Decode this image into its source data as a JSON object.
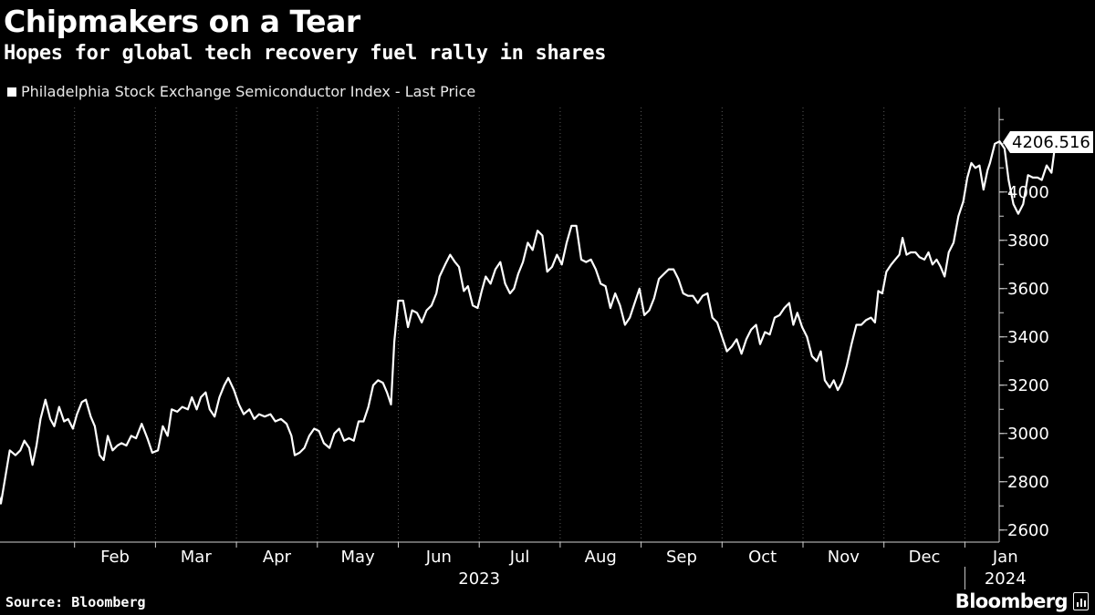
{
  "header": {
    "title": "Chipmakers on a Tear",
    "subtitle": "Hopes for global tech recovery fuel rally in shares"
  },
  "footer": {
    "source": "Source: Bloomberg",
    "brand": "Bloomberg"
  },
  "colors": {
    "background": "#000000",
    "line": "#ffffff",
    "grid": "#5a5a5a",
    "text": "#ffffff"
  },
  "chart_data": {
    "type": "line",
    "title": "Chipmakers on a Tear",
    "subtitle": "Hopes for global tech recovery fuel rally in shares",
    "legend": [
      "Philadelphia Stock Exchange Semiconductor Index - Last Price"
    ],
    "legend_position": "top-left",
    "xlabel": "",
    "ylabel": "",
    "ylim": [
      2550,
      4350
    ],
    "yticks": [
      2600,
      2800,
      3000,
      3200,
      3400,
      3600,
      3800,
      4000
    ],
    "grid": "vertical-dotted",
    "x_ticks": [
      {
        "label": "Feb",
        "month": 1
      },
      {
        "label": "Mar",
        "month": 2
      },
      {
        "label": "Apr",
        "month": 3
      },
      {
        "label": "May",
        "month": 4
      },
      {
        "label": "Jun",
        "month": 5
      },
      {
        "label": "Jul",
        "month": 6
      },
      {
        "label": "Aug",
        "month": 7
      },
      {
        "label": "Sep",
        "month": 8
      },
      {
        "label": "Oct",
        "month": 9
      },
      {
        "label": "Nov",
        "month": 10
      },
      {
        "label": "Dec",
        "month": 11
      },
      {
        "label": "Jan",
        "month": 12
      }
    ],
    "x_range_months": [
      0,
      12.35
    ],
    "year_labels": [
      {
        "label": "2023",
        "month": 6
      },
      {
        "label": "2024",
        "month": 12.5
      }
    ],
    "last_value_label": "4206.516",
    "series": [
      {
        "name": "Philadelphia Stock Exchange Semiconductor Index - Last Price",
        "points": [
          [
            0.03,
            2790
          ],
          [
            0.09,
            2710
          ],
          [
            0.15,
            2830
          ],
          [
            0.2,
            2930
          ],
          [
            0.27,
            2910
          ],
          [
            0.33,
            2930
          ],
          [
            0.38,
            2970
          ],
          [
            0.44,
            2940
          ],
          [
            0.48,
            2870
          ],
          [
            0.53,
            2950
          ],
          [
            0.58,
            3060
          ],
          [
            0.64,
            3140
          ],
          [
            0.7,
            3060
          ],
          [
            0.75,
            3030
          ],
          [
            0.81,
            3110
          ],
          [
            0.87,
            3050
          ],
          [
            0.92,
            3060
          ],
          [
            0.98,
            3020
          ],
          [
            1.03,
            3080
          ],
          [
            1.09,
            3130
          ],
          [
            1.14,
            3140
          ],
          [
            1.2,
            3070
          ],
          [
            1.25,
            3030
          ],
          [
            1.31,
            2910
          ],
          [
            1.36,
            2890
          ],
          [
            1.41,
            2990
          ],
          [
            1.47,
            2930
          ],
          [
            1.53,
            2950
          ],
          [
            1.58,
            2960
          ],
          [
            1.64,
            2950
          ],
          [
            1.7,
            2990
          ],
          [
            1.76,
            2980
          ],
          [
            1.83,
            3040
          ],
          [
            1.9,
            2980
          ],
          [
            1.96,
            2920
          ],
          [
            2.03,
            2930
          ],
          [
            2.09,
            3030
          ],
          [
            2.15,
            2990
          ],
          [
            2.2,
            3100
          ],
          [
            2.27,
            3090
          ],
          [
            2.33,
            3110
          ],
          [
            2.4,
            3100
          ],
          [
            2.45,
            3150
          ],
          [
            2.51,
            3100
          ],
          [
            2.56,
            3150
          ],
          [
            2.62,
            3170
          ],
          [
            2.67,
            3100
          ],
          [
            2.73,
            3070
          ],
          [
            2.79,
            3150
          ],
          [
            2.85,
            3200
          ],
          [
            2.9,
            3230
          ],
          [
            2.97,
            3180
          ],
          [
            3.03,
            3120
          ],
          [
            3.09,
            3080
          ],
          [
            3.16,
            3100
          ],
          [
            3.22,
            3060
          ],
          [
            3.28,
            3080
          ],
          [
            3.35,
            3070
          ],
          [
            3.42,
            3080
          ],
          [
            3.48,
            3050
          ],
          [
            3.55,
            3060
          ],
          [
            3.62,
            3040
          ],
          [
            3.68,
            2990
          ],
          [
            3.72,
            2910
          ],
          [
            3.78,
            2920
          ],
          [
            3.84,
            2940
          ],
          [
            3.9,
            2990
          ],
          [
            3.96,
            3020
          ],
          [
            4.02,
            3010
          ],
          [
            4.08,
            2960
          ],
          [
            4.15,
            2940
          ],
          [
            4.21,
            3000
          ],
          [
            4.27,
            3020
          ],
          [
            4.33,
            2970
          ],
          [
            4.39,
            2980
          ],
          [
            4.45,
            2970
          ],
          [
            4.51,
            3050
          ],
          [
            4.57,
            3050
          ],
          [
            4.63,
            3110
          ],
          [
            4.69,
            3200
          ],
          [
            4.75,
            3220
          ],
          [
            4.81,
            3210
          ],
          [
            4.86,
            3170
          ],
          [
            4.91,
            3120
          ],
          [
            4.95,
            3380
          ],
          [
            5.0,
            3550
          ],
          [
            5.06,
            3550
          ],
          [
            5.12,
            3440
          ],
          [
            5.17,
            3510
          ],
          [
            5.23,
            3500
          ],
          [
            5.29,
            3460
          ],
          [
            5.35,
            3510
          ],
          [
            5.41,
            3530
          ],
          [
            5.47,
            3580
          ],
          [
            5.51,
            3650
          ],
          [
            5.58,
            3700
          ],
          [
            5.64,
            3740
          ],
          [
            5.7,
            3710
          ],
          [
            5.75,
            3690
          ],
          [
            5.81,
            3590
          ],
          [
            5.86,
            3610
          ],
          [
            5.92,
            3530
          ],
          [
            5.98,
            3520
          ],
          [
            6.03,
            3590
          ],
          [
            6.08,
            3650
          ],
          [
            6.14,
            3620
          ],
          [
            6.2,
            3680
          ],
          [
            6.26,
            3710
          ],
          [
            6.32,
            3620
          ],
          [
            6.38,
            3580
          ],
          [
            6.43,
            3600
          ],
          [
            6.48,
            3660
          ],
          [
            6.54,
            3710
          ],
          [
            6.6,
            3790
          ],
          [
            6.66,
            3760
          ],
          [
            6.72,
            3840
          ],
          [
            6.78,
            3820
          ],
          [
            6.84,
            3670
          ],
          [
            6.9,
            3690
          ],
          [
            6.96,
            3740
          ],
          [
            7.02,
            3700
          ],
          [
            7.08,
            3790
          ],
          [
            7.14,
            3860
          ],
          [
            7.2,
            3860
          ],
          [
            7.26,
            3720
          ],
          [
            7.32,
            3710
          ],
          [
            7.38,
            3720
          ],
          [
            7.44,
            3680
          ],
          [
            7.5,
            3620
          ],
          [
            7.56,
            3610
          ],
          [
            7.62,
            3520
          ],
          [
            7.68,
            3580
          ],
          [
            7.74,
            3530
          ],
          [
            7.8,
            3450
          ],
          [
            7.86,
            3480
          ],
          [
            7.92,
            3540
          ],
          [
            7.98,
            3600
          ],
          [
            8.04,
            3490
          ],
          [
            8.1,
            3510
          ],
          [
            8.16,
            3560
          ],
          [
            8.22,
            3640
          ],
          [
            8.28,
            3660
          ],
          [
            8.34,
            3680
          ],
          [
            8.4,
            3680
          ],
          [
            8.46,
            3640
          ],
          [
            8.52,
            3580
          ],
          [
            8.58,
            3570
          ],
          [
            8.64,
            3570
          ],
          [
            8.7,
            3540
          ],
          [
            8.76,
            3570
          ],
          [
            8.82,
            3580
          ],
          [
            8.88,
            3480
          ],
          [
            8.94,
            3460
          ],
          [
            9.0,
            3400
          ],
          [
            9.06,
            3340
          ],
          [
            9.12,
            3360
          ],
          [
            9.18,
            3390
          ],
          [
            9.24,
            3330
          ],
          [
            9.3,
            3390
          ],
          [
            9.36,
            3430
          ],
          [
            9.42,
            3450
          ],
          [
            9.47,
            3370
          ],
          [
            9.53,
            3420
          ],
          [
            9.59,
            3410
          ],
          [
            9.65,
            3480
          ],
          [
            9.71,
            3490
          ],
          [
            9.77,
            3520
          ],
          [
            9.83,
            3540
          ],
          [
            9.88,
            3450
          ],
          [
            9.93,
            3500
          ],
          [
            9.99,
            3440
          ],
          [
            10.05,
            3400
          ],
          [
            10.11,
            3320
          ],
          [
            10.17,
            3300
          ],
          [
            10.22,
            3340
          ],
          [
            10.27,
            3220
          ],
          [
            10.33,
            3190
          ],
          [
            10.38,
            3220
          ],
          [
            10.43,
            3180
          ],
          [
            10.48,
            3210
          ],
          [
            10.54,
            3280
          ],
          [
            10.6,
            3370
          ],
          [
            10.66,
            3450
          ],
          [
            10.72,
            3450
          ],
          [
            10.78,
            3470
          ],
          [
            10.84,
            3480
          ],
          [
            10.89,
            3460
          ],
          [
            10.93,
            3590
          ],
          [
            10.98,
            3580
          ],
          [
            11.03,
            3670
          ],
          [
            11.09,
            3700
          ],
          [
            11.14,
            3720
          ],
          [
            11.19,
            3740
          ],
          [
            11.23,
            3810
          ],
          [
            11.28,
            3740
          ],
          [
            11.33,
            3750
          ],
          [
            11.39,
            3750
          ],
          [
            11.44,
            3730
          ],
          [
            11.5,
            3720
          ],
          [
            11.55,
            3750
          ],
          [
            11.6,
            3700
          ],
          [
            11.65,
            3720
          ],
          [
            11.7,
            3690
          ],
          [
            11.75,
            3650
          ],
          [
            11.8,
            3750
          ],
          [
            11.86,
            3790
          ],
          [
            11.92,
            3900
          ],
          [
            11.98,
            3960
          ],
          [
            12.03,
            4060
          ],
          [
            12.08,
            4120
          ],
          [
            12.13,
            4100
          ],
          [
            12.18,
            4110
          ],
          [
            12.23,
            4010
          ],
          [
            12.28,
            4090
          ],
          [
            12.31,
            4120
          ],
          [
            12.37,
            4200
          ],
          [
            12.43,
            4210
          ],
          [
            12.49,
            4180
          ],
          [
            12.54,
            4050
          ],
          [
            12.6,
            3950
          ],
          [
            12.66,
            3910
          ],
          [
            12.72,
            3950
          ],
          [
            12.78,
            4070
          ],
          [
            12.84,
            4060
          ],
          [
            12.9,
            4060
          ],
          [
            12.95,
            4050
          ],
          [
            13.01,
            4110
          ],
          [
            13.07,
            4080
          ],
          [
            13.12,
            4206.516
          ]
        ]
      }
    ]
  }
}
